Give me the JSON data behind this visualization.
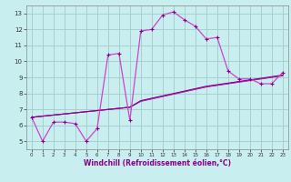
{
  "xlabel": "Windchill (Refroidissement éolien,°C)",
  "bg_color": "#c8eef0",
  "grid_color": "#a0ccc8",
  "line_color": "#880088",
  "line_color2": "#cc44cc",
  "x_hours": [
    0,
    1,
    2,
    3,
    4,
    5,
    6,
    7,
    8,
    9,
    10,
    11,
    12,
    13,
    14,
    15,
    16,
    17,
    18,
    19,
    20,
    21,
    22,
    23
  ],
  "y_temp": [
    6.5,
    5.0,
    6.2,
    6.2,
    6.1,
    5.0,
    5.8,
    10.4,
    10.5,
    6.3,
    11.9,
    12.0,
    12.9,
    13.1,
    12.6,
    12.2,
    11.4,
    11.5,
    9.4,
    8.9,
    8.9,
    8.6,
    8.6,
    9.3
  ],
  "y_line1": [
    6.5,
    6.57,
    6.64,
    6.71,
    6.78,
    6.85,
    6.92,
    6.99,
    7.06,
    7.13,
    7.5,
    7.65,
    7.8,
    7.95,
    8.1,
    8.25,
    8.4,
    8.5,
    8.6,
    8.7,
    8.8,
    8.9,
    9.0,
    9.1
  ],
  "y_line2": [
    6.5,
    6.57,
    6.64,
    6.71,
    6.78,
    6.85,
    6.92,
    6.99,
    7.06,
    7.13,
    7.52,
    7.67,
    7.82,
    7.97,
    8.12,
    8.27,
    8.42,
    8.52,
    8.62,
    8.72,
    8.82,
    8.92,
    9.02,
    9.12
  ],
  "y_line3": [
    6.5,
    6.57,
    6.64,
    6.71,
    6.78,
    6.85,
    6.92,
    6.99,
    7.06,
    7.13,
    7.54,
    7.69,
    7.84,
    7.99,
    8.14,
    8.29,
    8.44,
    8.54,
    8.64,
    8.74,
    8.84,
    8.94,
    9.04,
    9.14
  ],
  "ylim": [
    4.5,
    13.5
  ],
  "yticks": [
    5,
    6,
    7,
    8,
    9,
    10,
    11,
    12,
    13
  ],
  "xlim": [
    -0.5,
    23.5
  ],
  "xticks": [
    0,
    1,
    2,
    3,
    4,
    5,
    6,
    7,
    8,
    9,
    10,
    11,
    12,
    13,
    14,
    15,
    16,
    17,
    18,
    19,
    20,
    21,
    22,
    23
  ]
}
